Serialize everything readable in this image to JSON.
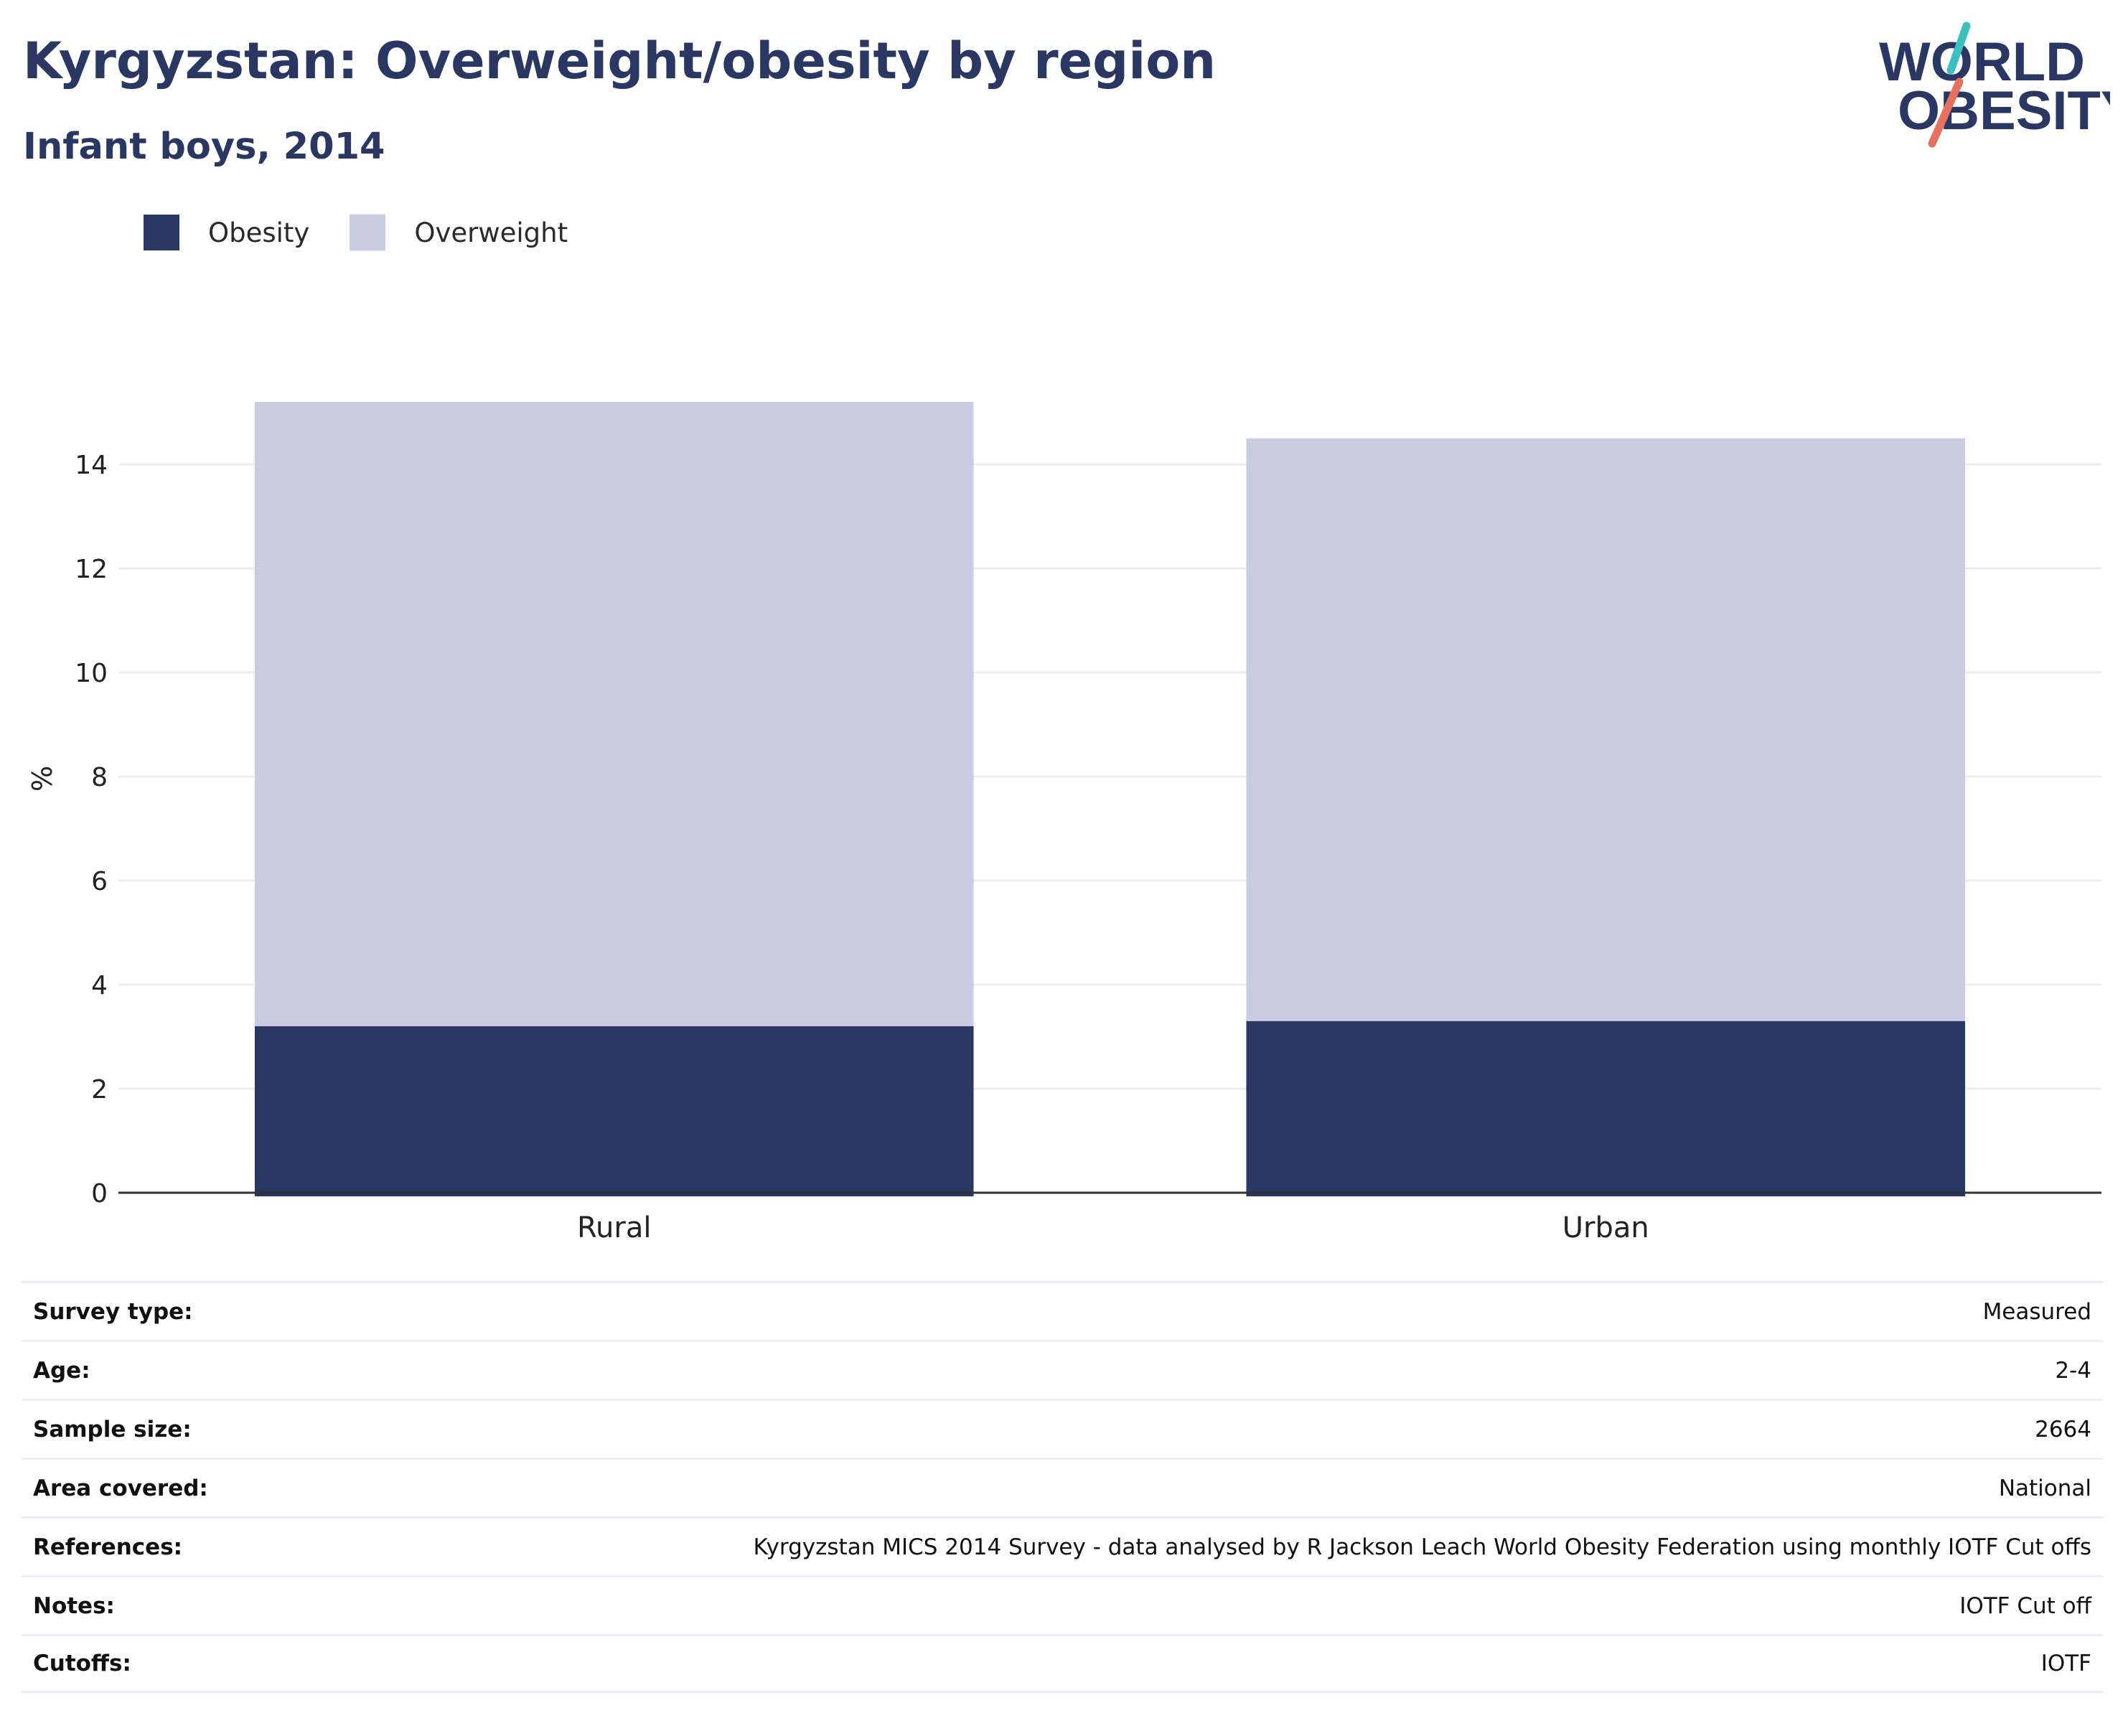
{
  "header": {
    "title": "Kyrgyzstan: Overweight/obesity by region",
    "subtitle": "Infant boys, 2014"
  },
  "logo": {
    "line1": "WORLD",
    "line2": "OBESITY",
    "colors": {
      "text": "#2a3763",
      "teal": "#3bbfbf",
      "coral": "#e8705f"
    }
  },
  "legend": [
    {
      "label": "Obesity",
      "color": "#2a3763"
    },
    {
      "label": "Overweight",
      "color": "#cacce1"
    }
  ],
  "chart_data": {
    "type": "bar",
    "stacked": true,
    "categories": [
      "Rural",
      "Urban"
    ],
    "series": [
      {
        "name": "Obesity",
        "values": [
          3.2,
          3.3
        ],
        "color": "#2a3763"
      },
      {
        "name": "Overweight",
        "values": [
          12.0,
          11.2
        ],
        "color": "#cacce1"
      }
    ],
    "ylabel": "%",
    "ylim": [
      0,
      15.2
    ],
    "yticks": [
      0,
      2,
      4,
      6,
      8,
      10,
      12,
      14
    ],
    "grid": true,
    "legend_position": "top-left"
  },
  "meta": [
    {
      "key": "Survey type:",
      "value": "Measured"
    },
    {
      "key": "Age:",
      "value": "2-4"
    },
    {
      "key": "Sample size:",
      "value": "2664"
    },
    {
      "key": "Area covered:",
      "value": "National"
    },
    {
      "key": "References:",
      "value": "Kyrgyzstan MICS 2014 Survey - data analysed by R Jackson Leach World Obesity Federation using monthly IOTF Cut offs"
    },
    {
      "key": "Notes:",
      "value": "IOTF Cut off"
    },
    {
      "key": "Cutoffs:",
      "value": "IOTF"
    }
  ]
}
